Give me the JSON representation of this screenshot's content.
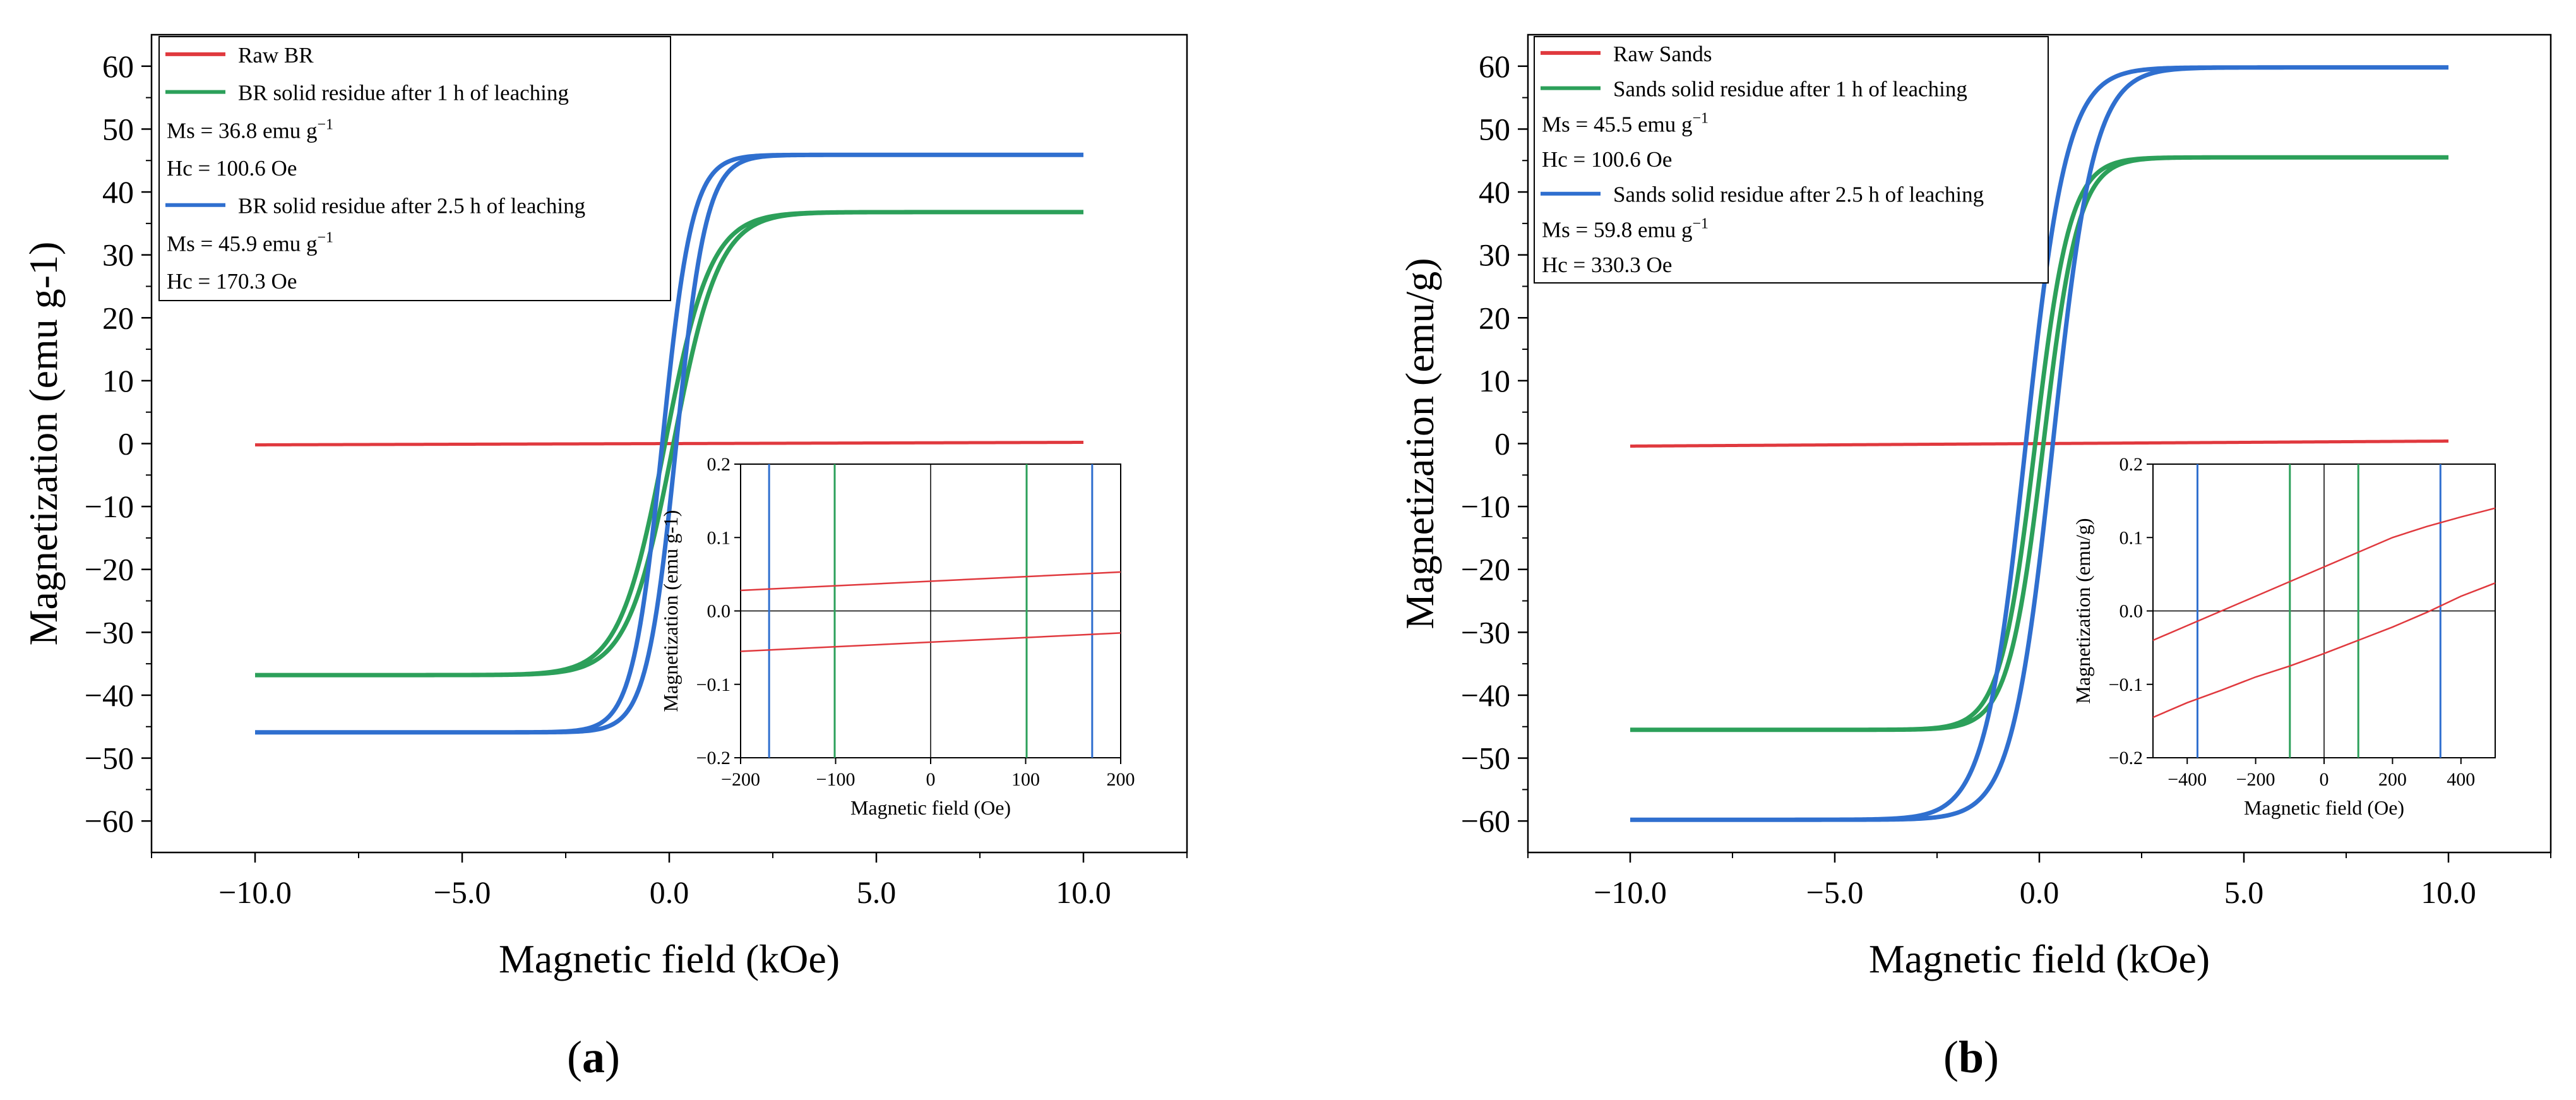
{
  "chart_data": [
    {
      "type": "line",
      "panel_label": "a",
      "xlabel": "Magnetic field (kOe)",
      "ylabel": "Magnetization (emu g-1)",
      "xlim": [
        -12.5,
        12.5
      ],
      "ylim": [
        -65,
        65
      ],
      "x_ticks": [
        -10.0,
        -5.0,
        0.0,
        5.0,
        10.0
      ],
      "x_tick_labels": [
        "-10.0",
        "-5.0",
        "0.0",
        "5.0",
        "10.0"
      ],
      "y_ticks": [
        -60,
        -50,
        -40,
        -30,
        -20,
        -10,
        0,
        10,
        20,
        30,
        40,
        50,
        60
      ],
      "y_tick_labels": [
        "-60",
        "-50",
        "-40",
        "-30",
        "-20",
        "-10",
        "0",
        "10",
        "20",
        "30",
        "40",
        "50",
        "60"
      ],
      "legend": {
        "position": "top-left",
        "entries": [
          {
            "label": "Raw BR",
            "color": "#e0393e"
          },
          {
            "label": "BR solid residue after 1 h of leaching",
            "color": "#2ca05a"
          },
          {
            "text": "Ms = 36.8 emu g",
            "sup": "−1"
          },
          {
            "text": "Hc = 100.6 Oe"
          },
          {
            "label": "BR solid residue after 2.5 h of leaching",
            "color": "#2f6fcf"
          },
          {
            "text": "Ms = 45.9 emu g",
            "sup": "−1"
          },
          {
            "text": "Hc = 170.3 Oe"
          }
        ]
      },
      "series": [
        {
          "name": "Raw BR",
          "color": "#e0393e",
          "kind": "linear",
          "slope": 0.02,
          "hc": 0.0
        },
        {
          "name": "BR solid residue after 1 h of leaching",
          "color": "#2ca05a",
          "kind": "hysteresis",
          "ms": 36.8,
          "hc": 0.1006,
          "a": 1.1
        },
        {
          "name": "BR solid residue after 2.5 h of leaching",
          "color": "#2f6fcf",
          "kind": "hysteresis",
          "ms": 45.9,
          "hc": 0.1703,
          "a": 0.72
        }
      ],
      "inset": {
        "xlabel": "Magnetic field (Oe)",
        "ylabel": "Magnetization (emu g-1)",
        "xlim": [
          -200,
          200
        ],
        "ylim": [
          -0.2,
          0.2
        ],
        "x_ticks": [
          -200,
          -100,
          0,
          100,
          200
        ],
        "x_tick_labels": [
          "-200",
          "-100",
          "0",
          "100",
          "200"
        ],
        "y_ticks": [
          -0.2,
          -0.1,
          0.0,
          0.1,
          0.2
        ],
        "y_tick_labels": [
          "-0.2",
          "-0.1",
          "0.0",
          "0.1",
          "0.2"
        ],
        "vertical_lines": [
          {
            "x": -170,
            "color": "#2f6fcf"
          },
          {
            "x": -101,
            "color": "#2ca05a"
          },
          {
            "x": 101,
            "color": "#2ca05a"
          },
          {
            "x": 170,
            "color": "#2f6fcf"
          }
        ],
        "curves": [
          {
            "color": "#e0393e",
            "x": [
              -200,
              200
            ],
            "y": [
              0.028,
              0.053
            ]
          },
          {
            "color": "#e0393e",
            "x": [
              -200,
              200
            ],
            "y": [
              -0.055,
              -0.03
            ]
          }
        ]
      }
    },
    {
      "type": "line",
      "panel_label": "b",
      "xlabel": "Magnetic field (kOe)",
      "ylabel": "Magnetization (emu/g)",
      "xlim": [
        -12.5,
        12.5
      ],
      "ylim": [
        -65,
        65
      ],
      "x_ticks": [
        -10.0,
        -5.0,
        0.0,
        5.0,
        10.0
      ],
      "x_tick_labels": [
        "-10.0",
        "-5.0",
        "0.0",
        "5.0",
        "10.0"
      ],
      "y_ticks": [
        -60,
        -50,
        -40,
        -30,
        -20,
        -10,
        0,
        10,
        20,
        30,
        40,
        50,
        60
      ],
      "y_tick_labels": [
        "-60",
        "-50",
        "-40",
        "-30",
        "-20",
        "-10",
        "0",
        "10",
        "20",
        "30",
        "40",
        "50",
        "60"
      ],
      "legend": {
        "position": "top-left",
        "entries": [
          {
            "label": "Raw Sands",
            "color": "#e0393e"
          },
          {
            "label": "Sands solid residue after 1 h of leaching",
            "color": "#2ca05a"
          },
          {
            "text": "Ms = 45.5 emu g",
            "sup": "−1"
          },
          {
            "text": "Hc = 100.6 Oe"
          },
          {
            "label": "Sands solid residue after 2.5 h of leaching",
            "color": "#2f6fcf"
          },
          {
            "text": "Ms = 59.8 emu g",
            "sup": "−1"
          },
          {
            "text": "Hc = 330.3 Oe"
          }
        ]
      },
      "series": [
        {
          "name": "Raw Sands",
          "color": "#e0393e",
          "kind": "linear",
          "slope": 0.04,
          "hc": 0.0
        },
        {
          "name": "Sands solid residue after 1 h of leaching",
          "color": "#2ca05a",
          "kind": "hysteresis",
          "ms": 45.5,
          "hc": 0.1006,
          "a": 0.85
        },
        {
          "name": "Sands solid residue after 2.5 h of leaching",
          "color": "#2f6fcf",
          "kind": "hysteresis",
          "ms": 59.8,
          "hc": 0.3303,
          "a": 1.0
        }
      ],
      "inset": {
        "xlabel": "Magnetic field (Oe)",
        "ylabel": "Magnetization (emu/g)",
        "xlim": [
          -500,
          500
        ],
        "ylim": [
          -0.2,
          0.2
        ],
        "x_ticks": [
          -400,
          -200,
          0,
          200,
          400
        ],
        "x_tick_labels": [
          "-400",
          "-200",
          "0",
          "200",
          "400"
        ],
        "y_ticks": [
          -0.2,
          -0.1,
          0.0,
          0.1,
          0.2
        ],
        "y_tick_labels": [
          "-0.2",
          "-0.1",
          "0.0",
          "0.1",
          "0.2"
        ],
        "vertical_lines": [
          {
            "x": -370,
            "color": "#2f6fcf"
          },
          {
            "x": -100,
            "color": "#2ca05a"
          },
          {
            "x": 100,
            "color": "#2ca05a"
          },
          {
            "x": 340,
            "color": "#2f6fcf"
          }
        ],
        "curves": [
          {
            "color": "#e0393e",
            "x": [
              -500,
              -400,
              -300,
              -200,
              -100,
              0,
              100,
              200,
              300,
              400,
              500
            ],
            "y": [
              -0.04,
              -0.02,
              0.0,
              0.02,
              0.04,
              0.06,
              0.08,
              0.1,
              0.115,
              0.128,
              0.14
            ]
          },
          {
            "color": "#e0393e",
            "x": [
              -500,
              -400,
              -300,
              -200,
              -100,
              0,
              100,
              200,
              300,
              400,
              500
            ],
            "y": [
              -0.145,
              -0.125,
              -0.108,
              -0.09,
              -0.075,
              -0.058,
              -0.04,
              -0.022,
              -0.002,
              0.02,
              0.038
            ]
          }
        ]
      }
    }
  ]
}
